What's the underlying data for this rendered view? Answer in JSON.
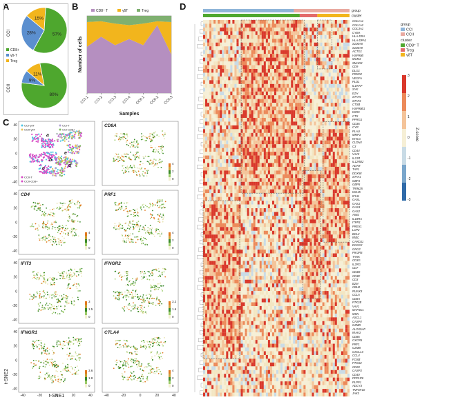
{
  "panels": {
    "A": "A",
    "B": "B",
    "C": "C",
    "D": "D"
  },
  "colors": {
    "cd8": "#4ea72e",
    "gdT": "#f2b51d",
    "treg": "#5b8fcf",
    "ccI": "#8fb5d9",
    "ccII": "#e9a9a0",
    "violet": "#b58fc0",
    "magenta": "#d64cc5",
    "cyan": "#4bc6e3"
  },
  "panel_a": {
    "charts": [
      {
        "group": "CCI",
        "slices": [
          {
            "name": "CD8+",
            "value": 57,
            "label": "57%"
          },
          {
            "name": "Treg",
            "value": 28,
            "label": "28%"
          },
          {
            "name": "γδ-T",
            "value": 15,
            "label": "15%"
          }
        ]
      },
      {
        "group": "CCII",
        "slices": [
          {
            "name": "CD8+",
            "value": 80,
            "label": "80%"
          },
          {
            "name": "Treg",
            "value": 9,
            "label": "9%"
          },
          {
            "name": "γδ-T",
            "value": 11,
            "label": "11%"
          }
        ]
      }
    ],
    "legend": [
      "CD8+",
      "γδ-T",
      "Treg"
    ]
  },
  "chart_data": {
    "type": "area",
    "categories": [
      "CCI-1",
      "CCI-2",
      "CCI-3",
      "CCI-4",
      "CCII-1",
      "CCII-2",
      "CCII-3"
    ],
    "series": [
      {
        "name": "CD8+ T",
        "values": [
          0.6,
          0.73,
          0.62,
          0.7,
          0.62,
          0.88,
          0.5
        ]
      },
      {
        "name": "γδT",
        "values": [
          0.32,
          0.2,
          0.28,
          0.18,
          0.28,
          0.05,
          0.42
        ]
      },
      {
        "name": "Treg",
        "values": [
          0.08,
          0.07,
          0.1,
          0.12,
          0.1,
          0.07,
          0.08
        ]
      }
    ],
    "ylabel": "Number of cells",
    "xlabel": "Samples",
    "ylim": [
      0,
      1
    ],
    "legend": [
      "CD8⁺ T",
      "γδT",
      "Treg"
    ]
  },
  "panel_c": {
    "plots": [
      {
        "title": "",
        "legend": [
          "CCI-γδT",
          "CCI-CD8+",
          "CCII-γδT",
          "CCII-CD8+"
        ],
        "extra": [
          "CCI-T",
          "CCII-T"
        ],
        "annots": [
          "a",
          "b",
          "c",
          "d",
          "e"
        ],
        "scale": []
      },
      {
        "title": "CD8A",
        "scale": [
          "4",
          "2",
          "0"
        ]
      },
      {
        "title": "CD4",
        "scale": [
          "4",
          "2",
          "0"
        ]
      },
      {
        "title": "PRF1",
        "scale": [
          "4",
          "2",
          "0"
        ]
      },
      {
        "title": "IFIT3",
        "scale": [
          "3",
          "1.5",
          "0"
        ]
      },
      {
        "title": "IFNGR2",
        "scale": [
          "3.2",
          "1.6",
          "0"
        ]
      },
      {
        "title": "IFNGR1",
        "scale": [
          "3.6",
          "1.8",
          "0"
        ]
      },
      {
        "title": "CTLA4",
        "scale": [
          "4",
          "2",
          "0"
        ]
      }
    ],
    "yticks": [
      "40",
      "20",
      "0",
      "-20",
      "-40"
    ],
    "xticks": [
      "-40",
      "-20",
      "0",
      "20",
      "40"
    ],
    "xlabel": "t-SNE1",
    "ylabel": "t-SNE2"
  },
  "panel_d": {
    "top_labels": [
      "group",
      "cluster"
    ],
    "legend_group_title": "group",
    "legend_group": [
      "CCI",
      "CCII"
    ],
    "legend_cluster_title": "cluster",
    "legend_cluster": [
      "CD8⁺ T",
      "Treg",
      "γδT"
    ],
    "zscore_label": "Z-score",
    "zscore_ticks": [
      "3",
      "2",
      "1",
      "0",
      "-1",
      "-2",
      "-3"
    ],
    "genes": [
      "COL1A1",
      "COL1A2",
      "COL3A1",
      "CYBA",
      "HLA-DRA",
      "HLA-DPA1",
      "S100A8",
      "S100A9",
      "ACTG1",
      "HSP90B",
      "MCM3",
      "SMAD3",
      "CD9",
      "DLG1",
      "PRKD2",
      "VEGFA",
      "PLD1",
      "IL1RAP",
      "SYK",
      "EZH",
      "STAT5",
      "STAT3",
      "CTSB",
      "HSP90B1",
      "KSR1",
      "CTS",
      "PPRG1",
      "CD36",
      "CYR",
      "PLAU",
      "MMP3",
      "KITLG",
      "CLDN4",
      "C3",
      "CD44",
      "VAV3",
      "IL21R",
      "IL12RB2",
      "ADAR",
      "TAP1",
      "DDX58",
      "STAT1",
      "GBP1",
      "GBP5",
      "TRIM25",
      "ISG15",
      "IFIH1",
      "OASL",
      "OAS1",
      "OAS3",
      "OAS2",
      "AIM2",
      "IL18RA",
      "ITPR1",
      "PREX1",
      "LCP2",
      "BCL2",
      "IRBC",
      "CARD11",
      "DOCK2",
      "GNG2",
      "PIK3R5",
      "TANK",
      "CD3G",
      "IL2RG",
      "CD7",
      "CD3D",
      "CD3E",
      "CD3",
      "B2M",
      "CBLB",
      "RUNX3",
      "CCL5",
      "CD8A",
      "PTK2B",
      "VAV1",
      "MAP3C1",
      "MSN",
      "ASCL1",
      "CASP4",
      "GZMD",
      "ALOX5AP",
      "IRAK3",
      "CD86",
      "CXCR6",
      "PRF1",
      "GZMB",
      "CXCL13",
      "CCL4",
      "FOSB",
      "PTGS2",
      "CD28",
      "CASP3",
      "CD40",
      "PPP1R8",
      "PLPP1",
      "ADCY3",
      "TNFSF10",
      "JAK3"
    ]
  }
}
